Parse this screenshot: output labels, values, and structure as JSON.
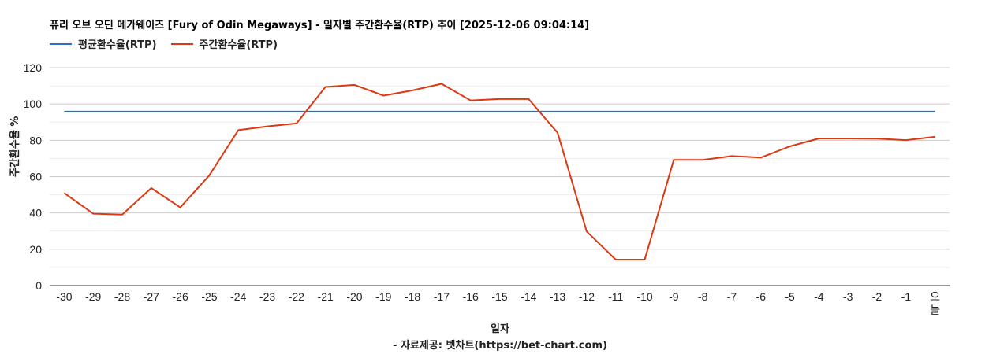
{
  "title": "퓨리 오브 오딘 메가웨이즈 [Fury of Odin Megaways] - 일자별 주간환수율(RTP) 추이 [2025-12-06 09:04:14]",
  "legend": [
    {
      "label": "평균환수율(RTP)",
      "color": "#3366cc"
    },
    {
      "label": "주간환수율(RTP)",
      "color": "#dc3912"
    }
  ],
  "y_axis_title": "주간환수율 %",
  "x_axis_title": "일자",
  "source": "- 자료제공: 벳차트(https://bet-chart.com)",
  "chart_data": {
    "type": "line",
    "title": "퓨리 오브 오딘 메가웨이즈 [Fury of Odin Megaways] - 일자별 주간환수율(RTP) 추이 [2025-12-06 09:04:14]",
    "xlabel": "일자",
    "ylabel": "주간환수율 %",
    "ylim": [
      0,
      120
    ],
    "yticks": [
      0,
      20,
      40,
      60,
      80,
      100,
      120
    ],
    "grid": true,
    "legend_position": "top",
    "categories": [
      "-30",
      "-29",
      "-28",
      "-27",
      "-26",
      "-25",
      "-24",
      "-23",
      "-22",
      "-21",
      "-20",
      "-19",
      "-18",
      "-17",
      "-16",
      "-15",
      "-14",
      "-13",
      "-12",
      "-11",
      "-10",
      "-9",
      "-8",
      "-7",
      "-6",
      "-5",
      "-4",
      "-3",
      "-2",
      "-1",
      "오늘"
    ],
    "series": [
      {
        "name": "평균환수율(RTP)",
        "color": "#3366cc",
        "values": [
          95.8,
          95.8,
          95.8,
          95.8,
          95.8,
          95.8,
          95.8,
          95.8,
          95.8,
          95.8,
          95.8,
          95.8,
          95.8,
          95.8,
          95.8,
          95.8,
          95.8,
          95.8,
          95.8,
          95.8,
          95.8,
          95.8,
          95.8,
          95.8,
          95.8,
          95.8,
          95.8,
          95.8,
          95.8,
          95.8,
          95.8
        ]
      },
      {
        "name": "주간환수율(RTP)",
        "color": "#dc3912",
        "values": [
          51.0,
          39.6,
          39.1,
          53.7,
          43.0,
          60.7,
          85.6,
          87.7,
          89.3,
          109.4,
          110.5,
          104.6,
          107.5,
          111.1,
          102.0,
          102.7,
          102.7,
          84.1,
          29.8,
          14.3,
          14.3,
          69.2,
          69.2,
          71.3,
          70.5,
          76.7,
          81.0,
          81.0,
          80.9,
          80.1,
          81.9
        ]
      }
    ]
  }
}
